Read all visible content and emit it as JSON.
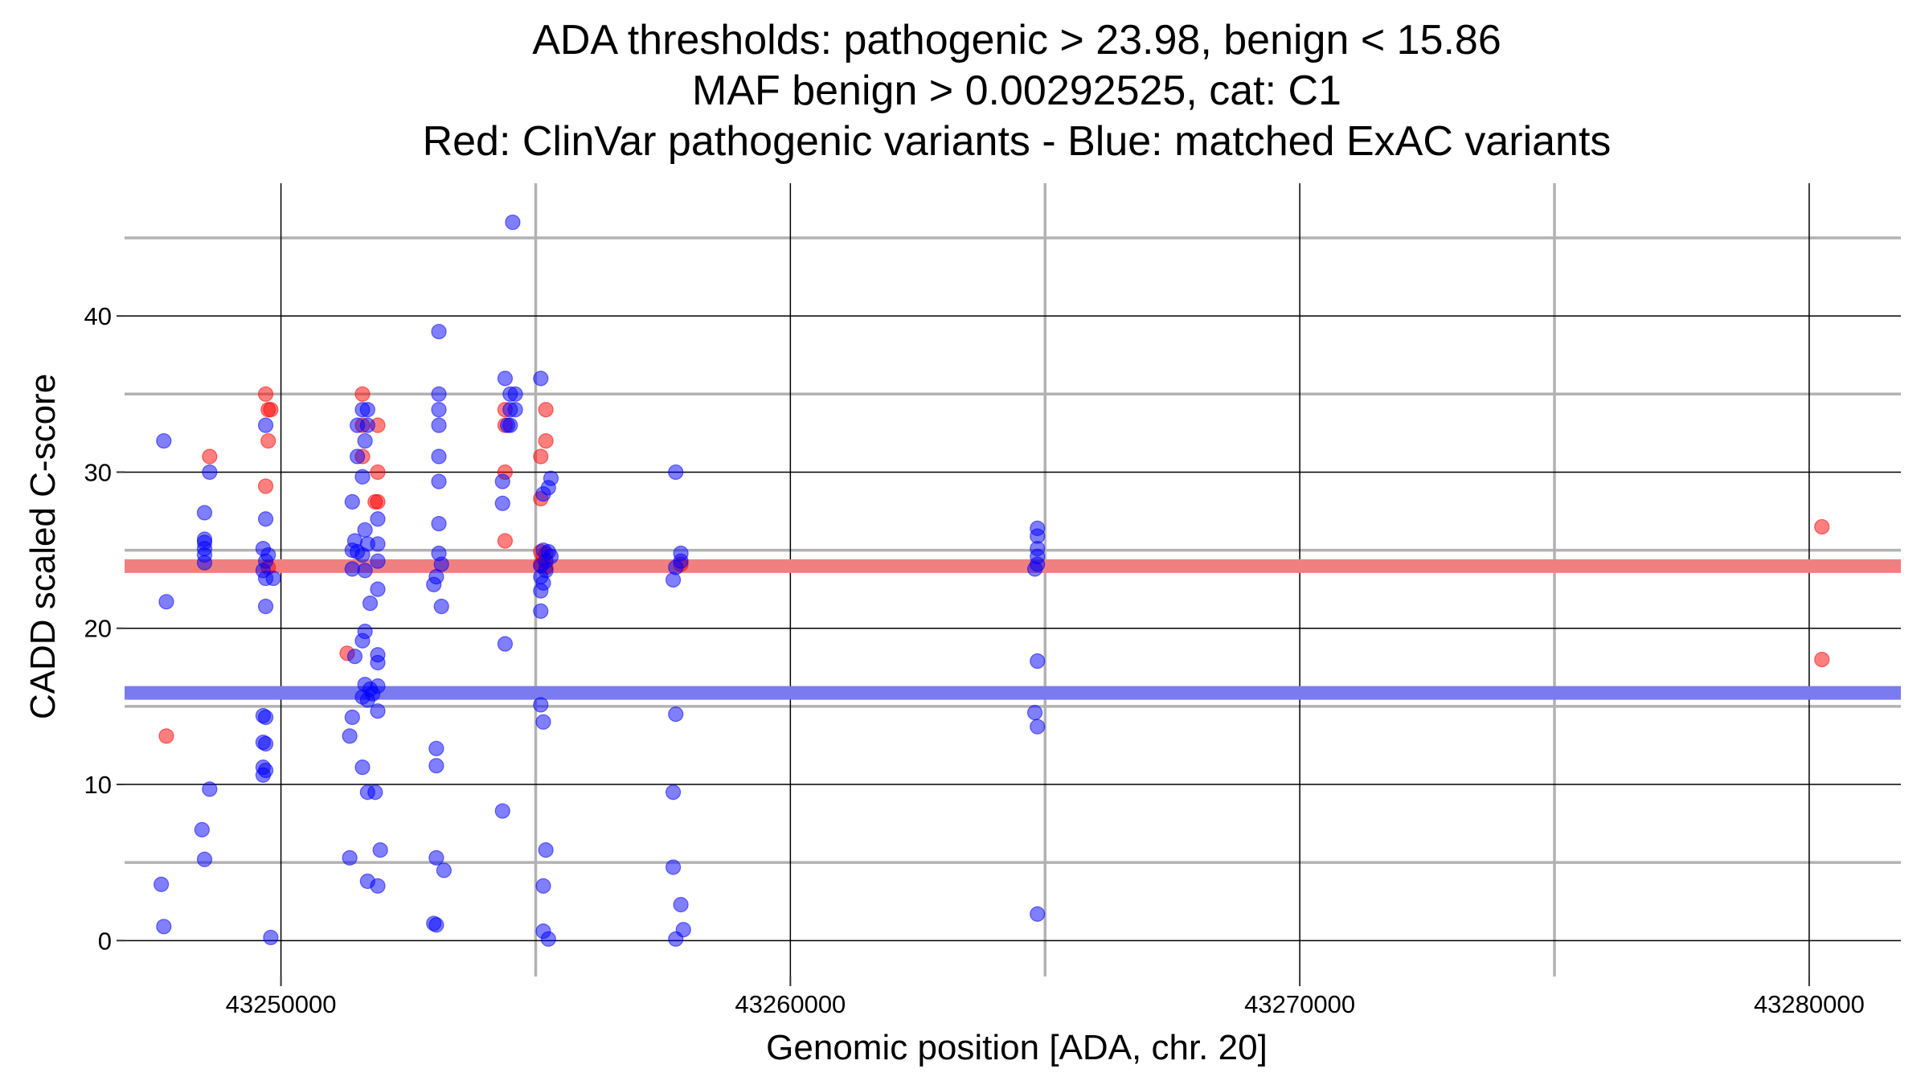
{
  "chart_data": {
    "type": "scatter",
    "title_lines": [
      "ADA thresholds: pathogenic > 23.98, benign < 15.86",
      "MAF benign > 0.00292525, cat: C1",
      "Red: ClinVar pathogenic variants - Blue: matched ExAC variants"
    ],
    "xlabel": "Genomic position [ADA, chr. 20]",
    "ylabel": "CADD scaled C-score",
    "xlim": [
      43246930,
      43281800
    ],
    "ylim": [
      -2.3,
      48.5
    ],
    "x_ticks": [
      43250000,
      43260000,
      43270000,
      43280000
    ],
    "y_ticks": [
      0,
      10,
      20,
      30,
      40
    ],
    "x_minor_ticks": [
      43255000,
      43265000,
      43275000
    ],
    "y_minor_ticks": [
      5,
      15,
      25,
      35,
      45
    ],
    "grid": true,
    "thresholds": [
      {
        "value": 23.98,
        "color": "#f08080"
      },
      {
        "value": 15.86,
        "color": "#7b7bf0"
      }
    ],
    "colors": {
      "pathogenic": "#ff0000",
      "matched": "#0000ff",
      "major_grid": "#000000",
      "minor_grid": "#b2b2b2"
    },
    "series": [
      {
        "key": "pathogenic",
        "points": [
          [
            43247750,
            13.1
          ],
          [
            43248600,
            31
          ],
          [
            43249700,
            35
          ],
          [
            43249750,
            34
          ],
          [
            43249800,
            34
          ],
          [
            43249750,
            32
          ],
          [
            43249700,
            29.1
          ],
          [
            43249750,
            23.9
          ],
          [
            43251300,
            18.4
          ],
          [
            43251600,
            35
          ],
          [
            43251600,
            33
          ],
          [
            43251600,
            31
          ],
          [
            43251900,
            33
          ],
          [
            43251900,
            30
          ],
          [
            43251900,
            28.1
          ],
          [
            43251850,
            28.1
          ],
          [
            43254400,
            34
          ],
          [
            43254400,
            33
          ],
          [
            43254400,
            30
          ],
          [
            43254400,
            25.6
          ],
          [
            43255200,
            34
          ],
          [
            43255200,
            32
          ],
          [
            43255100,
            31
          ],
          [
            43255100,
            28.3
          ],
          [
            43255100,
            24.9
          ],
          [
            43255200,
            24.8
          ],
          [
            43255150,
            24.5
          ],
          [
            43255100,
            24.1
          ],
          [
            43255200,
            23.9
          ],
          [
            43257850,
            24.1
          ],
          [
            43280250,
            26.5
          ],
          [
            43280250,
            18
          ]
        ]
      },
      {
        "key": "matched",
        "points": [
          [
            43247700,
            32
          ],
          [
            43247750,
            21.7
          ],
          [
            43247650,
            3.6
          ],
          [
            43247700,
            0.9
          ],
          [
            43248500,
            27.4
          ],
          [
            43248500,
            25.7
          ],
          [
            43248500,
            25.5
          ],
          [
            43248500,
            25.1
          ],
          [
            43248500,
            24.7
          ],
          [
            43248500,
            24.2
          ],
          [
            43248600,
            30
          ],
          [
            43248600,
            9.7
          ],
          [
            43248450,
            7.1
          ],
          [
            43248500,
            5.2
          ],
          [
            43249700,
            33
          ],
          [
            43249700,
            27
          ],
          [
            43249650,
            25.1
          ],
          [
            43249750,
            24.7
          ],
          [
            43249700,
            24.3
          ],
          [
            43249650,
            23.7
          ],
          [
            43249700,
            23.2
          ],
          [
            43249850,
            23.2
          ],
          [
            43249700,
            21.4
          ],
          [
            43249650,
            14.4
          ],
          [
            43249700,
            14.3
          ],
          [
            43249650,
            12.7
          ],
          [
            43249700,
            12.6
          ],
          [
            43249650,
            11.1
          ],
          [
            43249700,
            10.9
          ],
          [
            43249650,
            10.6
          ],
          [
            43249800,
            0.2
          ],
          [
            43251500,
            33
          ],
          [
            43251700,
            33
          ],
          [
            43251600,
            34
          ],
          [
            43251700,
            34
          ],
          [
            43251650,
            32
          ],
          [
            43251500,
            31
          ],
          [
            43251600,
            29.7
          ],
          [
            43251400,
            28.1
          ],
          [
            43251900,
            27
          ],
          [
            43251650,
            26.3
          ],
          [
            43251450,
            25.6
          ],
          [
            43251700,
            25.4
          ],
          [
            43251900,
            25.4
          ],
          [
            43251400,
            25
          ],
          [
            43251500,
            24.9
          ],
          [
            43251600,
            24.7
          ],
          [
            43251900,
            24.3
          ],
          [
            43251400,
            23.8
          ],
          [
            43251650,
            23.7
          ],
          [
            43251900,
            22.5
          ],
          [
            43251750,
            21.6
          ],
          [
            43251650,
            19.8
          ],
          [
            43251600,
            19.2
          ],
          [
            43251450,
            18.2
          ],
          [
            43251900,
            18.3
          ],
          [
            43251900,
            17.8
          ],
          [
            43251650,
            16.4
          ],
          [
            43251900,
            16.3
          ],
          [
            43251750,
            16.1
          ],
          [
            43251800,
            15.8
          ],
          [
            43251600,
            15.6
          ],
          [
            43251700,
            15.4
          ],
          [
            43251900,
            14.7
          ],
          [
            43251400,
            14.3
          ],
          [
            43251350,
            13.1
          ],
          [
            43251600,
            11.1
          ],
          [
            43251700,
            9.5
          ],
          [
            43251850,
            9.5
          ],
          [
            43251950,
            5.8
          ],
          [
            43251350,
            5.3
          ],
          [
            43251700,
            3.8
          ],
          [
            43251900,
            3.5
          ],
          [
            43253100,
            39
          ],
          [
            43253100,
            35
          ],
          [
            43253100,
            34
          ],
          [
            43253100,
            33
          ],
          [
            43253100,
            31
          ],
          [
            43253100,
            29.4
          ],
          [
            43253100,
            26.7
          ],
          [
            43253100,
            24.8
          ],
          [
            43253150,
            24.1
          ],
          [
            43253050,
            23.3
          ],
          [
            43253000,
            22.8
          ],
          [
            43253150,
            21.4
          ],
          [
            43253050,
            12.3
          ],
          [
            43253050,
            11.2
          ],
          [
            43253050,
            5.3
          ],
          [
            43253200,
            4.5
          ],
          [
            43253050,
            1
          ],
          [
            43253000,
            1.1
          ],
          [
            43254550,
            46
          ],
          [
            43254400,
            36
          ],
          [
            43254500,
            35
          ],
          [
            43254600,
            35
          ],
          [
            43254500,
            34
          ],
          [
            43254600,
            34
          ],
          [
            43254450,
            33
          ],
          [
            43254500,
            33
          ],
          [
            43254350,
            29.4
          ],
          [
            43254350,
            28
          ],
          [
            43254400,
            19
          ],
          [
            43254350,
            8.3
          ],
          [
            43255100,
            36
          ],
          [
            43255300,
            29.6
          ],
          [
            43255250,
            29
          ],
          [
            43255150,
            28.6
          ],
          [
            43255150,
            25
          ],
          [
            43255250,
            24.9
          ],
          [
            43255300,
            24.6
          ],
          [
            43255200,
            24.3
          ],
          [
            43255100,
            24
          ],
          [
            43255200,
            23.7
          ],
          [
            43255100,
            23.3
          ],
          [
            43255150,
            22.9
          ],
          [
            43255100,
            22.4
          ],
          [
            43255100,
            21.1
          ],
          [
            43255100,
            15.1
          ],
          [
            43255150,
            14
          ],
          [
            43255200,
            5.8
          ],
          [
            43255150,
            3.5
          ],
          [
            43255150,
            0.6
          ],
          [
            43255250,
            0.1
          ],
          [
            43257750,
            30
          ],
          [
            43257850,
            24.8
          ],
          [
            43257850,
            24.3
          ],
          [
            43257750,
            23.9
          ],
          [
            43257700,
            23.1
          ],
          [
            43257750,
            14.5
          ],
          [
            43257700,
            9.5
          ],
          [
            43257700,
            4.7
          ],
          [
            43257850,
            2.3
          ],
          [
            43257900,
            0.7
          ],
          [
            43257750,
            0.1
          ],
          [
            43264850,
            26.4
          ],
          [
            43264850,
            25.9
          ],
          [
            43264850,
            25.1
          ],
          [
            43264850,
            24.6
          ],
          [
            43264850,
            24.1
          ],
          [
            43264800,
            23.8
          ],
          [
            43264850,
            17.9
          ],
          [
            43264800,
            14.6
          ],
          [
            43264850,
            13.7
          ],
          [
            43264850,
            1.7
          ]
        ]
      }
    ]
  }
}
